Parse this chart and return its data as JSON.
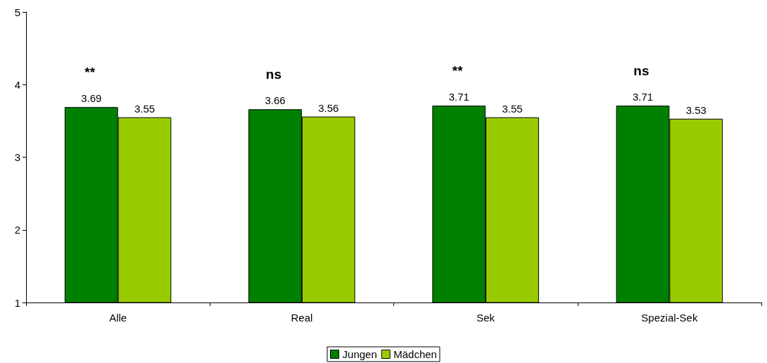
{
  "chart_data": {
    "type": "bar",
    "categories": [
      "Alle",
      "Real",
      "Sek",
      "Spezial-Sek"
    ],
    "series": [
      {
        "name": "Jungen",
        "color": "#008000",
        "values": [
          3.69,
          3.66,
          3.71,
          3.71
        ]
      },
      {
        "name": "Mädchen",
        "color": "#99cc00",
        "values": [
          3.55,
          3.56,
          3.55,
          3.53
        ]
      }
    ],
    "ylim": [
      1,
      5
    ],
    "yticks": [
      1,
      2,
      3,
      4,
      5
    ],
    "grid": false,
    "legend": "bottom",
    "data_labels": true,
    "annotations": [
      "**",
      "ns",
      "**",
      "ns"
    ]
  }
}
